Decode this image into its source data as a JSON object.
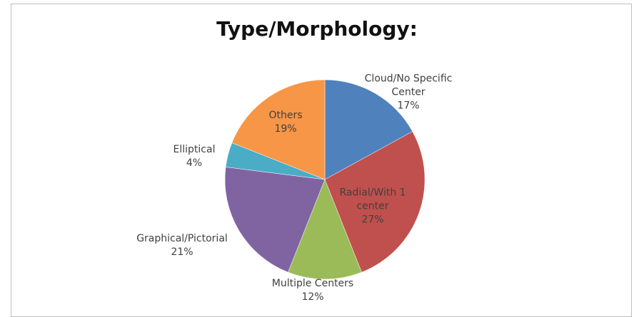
{
  "chart_data": {
    "type": "pie",
    "title": "Type/Morphology:",
    "categories": [
      "Cloud/No Specific Center",
      "Radial/With 1 center",
      "Multiple Centers",
      "Graphical/Pictorial",
      "Elliptical",
      "Others"
    ],
    "values": [
      17,
      27,
      12,
      21,
      4,
      19
    ],
    "value_labels": [
      "17%",
      "27%",
      "12%",
      "21%",
      "4%",
      "19%"
    ],
    "colors": [
      "#4f81bd",
      "#c0504d",
      "#9bbb59",
      "#8064a2",
      "#4bacc6",
      "#f79646"
    ]
  }
}
